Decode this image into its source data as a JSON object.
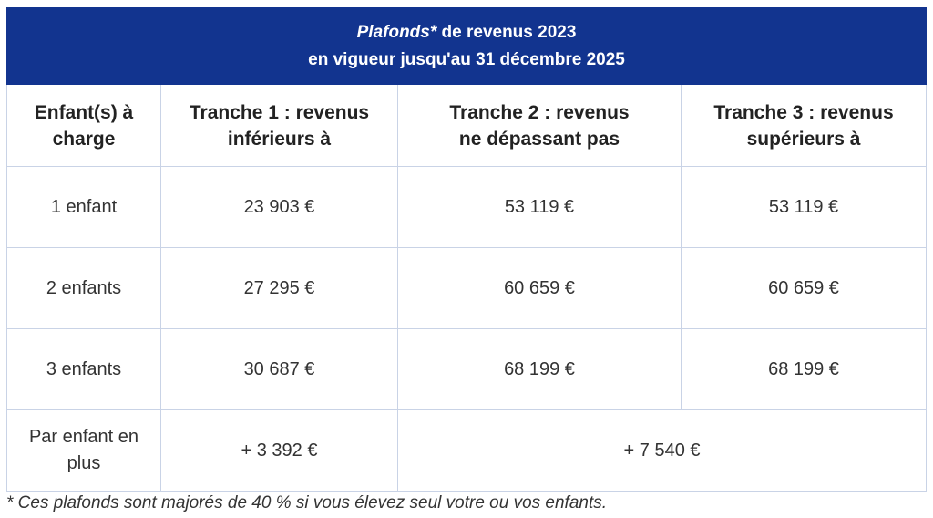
{
  "title": {
    "emphasis": "Plafonds*",
    "rest": " de revenus 2023",
    "line2": "en vigueur jusqu'au 31 décembre 2025"
  },
  "headers": [
    {
      "line1": "Enfant(s) à",
      "line2": "charge"
    },
    {
      "line1": "Tranche 1 : revenus",
      "line2": "inférieurs à"
    },
    {
      "line1": "Tranche 2 : revenus",
      "line2": "ne dépassant pas"
    },
    {
      "line1": "Tranche 3 : revenus",
      "line2": "supérieurs à"
    }
  ],
  "rows": [
    {
      "label": "1 enfant",
      "t1": "23 903 €",
      "t2": "53 119 €",
      "t3": "53 119 €"
    },
    {
      "label": "2 enfants",
      "t1": "27 295 €",
      "t2": "60 659 €",
      "t3": "60 659 €"
    },
    {
      "label": "3 enfants",
      "t1": "30 687 €",
      "t2": "68 199 €",
      "t3": "68 199 €"
    }
  ],
  "extra_row": {
    "label_line1": "Par enfant en",
    "label_line2": "plus",
    "t1": "+ 3 392 €",
    "t23": "+ 7 540 €"
  },
  "footnote": "* Ces plafonds sont majorés de 40 % si vous élevez seul votre ou vos enfants.",
  "colors": {
    "header_bg": "#12348f",
    "border": "#c9d3e6"
  }
}
